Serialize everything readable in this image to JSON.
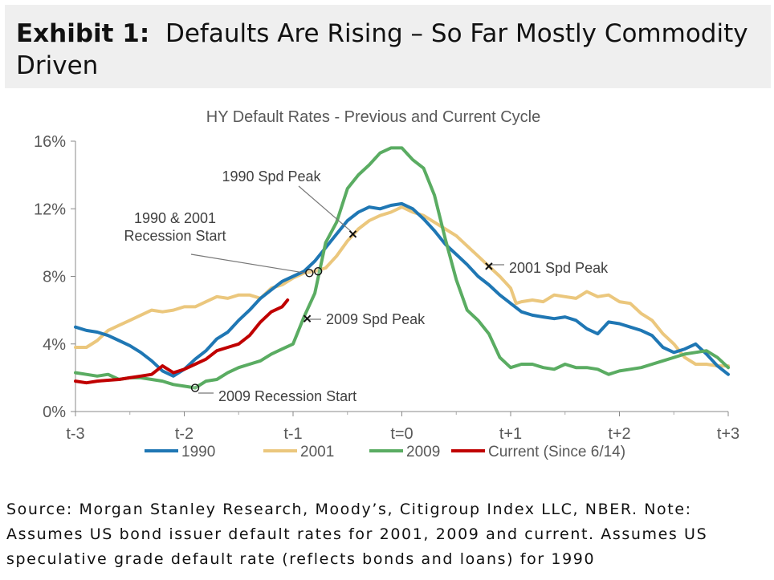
{
  "header": {
    "label": "Exhibit 1:",
    "title": "Defaults Are Rising – So Far Mostly Commodity Driven"
  },
  "source": "Source: Morgan Stanley Research, Moody’s, Citigroup Index LLC, NBER. Note: Assumes US bond issuer default rates for 2001, 2009 and current. Assumes US speculative grade default rate (reflects bonds and loans) for 1990",
  "chart_data": {
    "type": "line",
    "title": "HY Default Rates - Previous and Current Cycle",
    "xlim": [
      -3,
      3
    ],
    "ylim": [
      0,
      16
    ],
    "x_ticks": [
      {
        "value": -3,
        "label": "t-3"
      },
      {
        "value": -2,
        "label": "t-2"
      },
      {
        "value": -1,
        "label": "t-1"
      },
      {
        "value": 0,
        "label": "t=0"
      },
      {
        "value": 1,
        "label": "t+1"
      },
      {
        "value": 2,
        "label": "t+2"
      },
      {
        "value": 3,
        "label": "t+3"
      }
    ],
    "y_ticks": [
      {
        "value": 0,
        "label": "0%"
      },
      {
        "value": 4,
        "label": "4%"
      },
      {
        "value": 8,
        "label": "8%"
      },
      {
        "value": 12,
        "label": "12%"
      },
      {
        "value": 16,
        "label": "16%"
      }
    ],
    "legend_position": "bottom",
    "series": [
      {
        "name": "1990",
        "color": "#1f77b4",
        "points": [
          [
            -3,
            5.0
          ],
          [
            -2.9,
            4.8
          ],
          [
            -2.8,
            4.7
          ],
          [
            -2.7,
            4.5
          ],
          [
            -2.6,
            4.2
          ],
          [
            -2.5,
            3.9
          ],
          [
            -2.4,
            3.5
          ],
          [
            -2.3,
            3.0
          ],
          [
            -2.2,
            2.4
          ],
          [
            -2.1,
            2.1
          ],
          [
            -2.0,
            2.5
          ],
          [
            -1.9,
            3.1
          ],
          [
            -1.8,
            3.6
          ],
          [
            -1.7,
            4.3
          ],
          [
            -1.6,
            4.7
          ],
          [
            -1.5,
            5.4
          ],
          [
            -1.4,
            6.0
          ],
          [
            -1.3,
            6.7
          ],
          [
            -1.2,
            7.2
          ],
          [
            -1.1,
            7.7
          ],
          [
            -1.0,
            8.0
          ],
          [
            -0.9,
            8.3
          ],
          [
            -0.8,
            8.9
          ],
          [
            -0.7,
            9.7
          ],
          [
            -0.6,
            10.5
          ],
          [
            -0.5,
            11.3
          ],
          [
            -0.4,
            11.8
          ],
          [
            -0.3,
            12.1
          ],
          [
            -0.2,
            12.0
          ],
          [
            -0.1,
            12.2
          ],
          [
            0.0,
            12.3
          ],
          [
            0.1,
            12.0
          ],
          [
            0.2,
            11.4
          ],
          [
            0.3,
            10.7
          ],
          [
            0.4,
            9.9
          ],
          [
            0.5,
            9.3
          ],
          [
            0.6,
            8.7
          ],
          [
            0.7,
            8.0
          ],
          [
            0.8,
            7.5
          ],
          [
            0.9,
            6.9
          ],
          [
            1.0,
            6.4
          ],
          [
            1.1,
            5.9
          ],
          [
            1.2,
            5.7
          ],
          [
            1.3,
            5.6
          ],
          [
            1.4,
            5.5
          ],
          [
            1.5,
            5.6
          ],
          [
            1.6,
            5.4
          ],
          [
            1.7,
            4.9
          ],
          [
            1.8,
            4.6
          ],
          [
            1.9,
            5.3
          ],
          [
            2.0,
            5.2
          ],
          [
            2.1,
            5.0
          ],
          [
            2.2,
            4.8
          ],
          [
            2.3,
            4.5
          ],
          [
            2.4,
            3.8
          ],
          [
            2.5,
            3.5
          ],
          [
            2.6,
            3.7
          ],
          [
            2.7,
            4.0
          ],
          [
            2.8,
            3.4
          ],
          [
            2.9,
            2.7
          ],
          [
            3.0,
            2.2
          ]
        ]
      },
      {
        "name": "2001",
        "color": "#ebc77d",
        "points": [
          [
            -3,
            3.8
          ],
          [
            -2.9,
            3.8
          ],
          [
            -2.8,
            4.2
          ],
          [
            -2.7,
            4.8
          ],
          [
            -2.6,
            5.1
          ],
          [
            -2.5,
            5.4
          ],
          [
            -2.4,
            5.7
          ],
          [
            -2.3,
            6.0
          ],
          [
            -2.2,
            5.9
          ],
          [
            -2.1,
            6.0
          ],
          [
            -2.0,
            6.2
          ],
          [
            -1.9,
            6.2
          ],
          [
            -1.8,
            6.5
          ],
          [
            -1.7,
            6.8
          ],
          [
            -1.6,
            6.7
          ],
          [
            -1.5,
            6.9
          ],
          [
            -1.4,
            6.9
          ],
          [
            -1.3,
            6.7
          ],
          [
            -1.2,
            7.3
          ],
          [
            -1.1,
            7.5
          ],
          [
            -1.0,
            7.9
          ],
          [
            -0.9,
            8.2
          ],
          [
            -0.8,
            8.3
          ],
          [
            -0.7,
            8.5
          ],
          [
            -0.6,
            9.2
          ],
          [
            -0.5,
            10.1
          ],
          [
            -0.4,
            10.8
          ],
          [
            -0.3,
            11.3
          ],
          [
            -0.2,
            11.6
          ],
          [
            -0.1,
            11.8
          ],
          [
            0.0,
            12.1
          ],
          [
            0.1,
            11.8
          ],
          [
            0.2,
            11.6
          ],
          [
            0.3,
            11.2
          ],
          [
            0.4,
            10.8
          ],
          [
            0.5,
            10.4
          ],
          [
            0.6,
            9.8
          ],
          [
            0.7,
            9.2
          ],
          [
            0.8,
            8.6
          ],
          [
            0.9,
            8.0
          ],
          [
            1.0,
            7.3
          ],
          [
            1.05,
            6.4
          ],
          [
            1.1,
            6.5
          ],
          [
            1.2,
            6.6
          ],
          [
            1.3,
            6.5
          ],
          [
            1.4,
            6.9
          ],
          [
            1.5,
            6.8
          ],
          [
            1.6,
            6.7
          ],
          [
            1.7,
            7.1
          ],
          [
            1.8,
            6.8
          ],
          [
            1.9,
            6.9
          ],
          [
            2.0,
            6.5
          ],
          [
            2.1,
            6.4
          ],
          [
            2.2,
            5.8
          ],
          [
            2.3,
            5.4
          ],
          [
            2.4,
            4.6
          ],
          [
            2.5,
            4.0
          ],
          [
            2.6,
            3.2
          ],
          [
            2.7,
            2.8
          ],
          [
            2.8,
            2.8
          ],
          [
            2.9,
            2.7
          ],
          [
            3.0,
            2.7
          ]
        ]
      },
      {
        "name": "2009",
        "color": "#5aac62",
        "points": [
          [
            -3,
            2.3
          ],
          [
            -2.9,
            2.2
          ],
          [
            -2.8,
            2.1
          ],
          [
            -2.7,
            2.2
          ],
          [
            -2.6,
            1.9
          ],
          [
            -2.5,
            2.0
          ],
          [
            -2.4,
            2.0
          ],
          [
            -2.3,
            1.9
          ],
          [
            -2.2,
            1.8
          ],
          [
            -2.1,
            1.6
          ],
          [
            -2.0,
            1.5
          ],
          [
            -1.9,
            1.4
          ],
          [
            -1.8,
            1.8
          ],
          [
            -1.7,
            1.9
          ],
          [
            -1.6,
            2.3
          ],
          [
            -1.5,
            2.6
          ],
          [
            -1.4,
            2.8
          ],
          [
            -1.3,
            3.0
          ],
          [
            -1.2,
            3.4
          ],
          [
            -1.1,
            3.7
          ],
          [
            -1.0,
            4.0
          ],
          [
            -0.9,
            5.6
          ],
          [
            -0.8,
            7.0
          ],
          [
            -0.7,
            10.0
          ],
          [
            -0.6,
            11.2
          ],
          [
            -0.5,
            13.2
          ],
          [
            -0.4,
            14.0
          ],
          [
            -0.3,
            14.6
          ],
          [
            -0.2,
            15.3
          ],
          [
            -0.1,
            15.6
          ],
          [
            0.0,
            15.6
          ],
          [
            0.1,
            14.9
          ],
          [
            0.2,
            14.4
          ],
          [
            0.3,
            12.8
          ],
          [
            0.4,
            10.2
          ],
          [
            0.5,
            7.8
          ],
          [
            0.6,
            6.0
          ],
          [
            0.7,
            5.4
          ],
          [
            0.8,
            4.6
          ],
          [
            0.9,
            3.2
          ],
          [
            1.0,
            2.6
          ],
          [
            1.1,
            2.8
          ],
          [
            1.2,
            2.8
          ],
          [
            1.3,
            2.6
          ],
          [
            1.4,
            2.5
          ],
          [
            1.5,
            2.8
          ],
          [
            1.6,
            2.6
          ],
          [
            1.7,
            2.6
          ],
          [
            1.8,
            2.5
          ],
          [
            1.9,
            2.2
          ],
          [
            2.0,
            2.4
          ],
          [
            2.1,
            2.5
          ],
          [
            2.2,
            2.6
          ],
          [
            2.3,
            2.8
          ],
          [
            2.4,
            3.0
          ],
          [
            2.5,
            3.2
          ],
          [
            2.6,
            3.4
          ],
          [
            2.7,
            3.5
          ],
          [
            2.8,
            3.6
          ],
          [
            2.9,
            3.2
          ],
          [
            3.0,
            2.6
          ]
        ]
      },
      {
        "name": "Current (Since 6/14)",
        "color": "#c00000",
        "points": [
          [
            -3,
            1.8
          ],
          [
            -2.9,
            1.7
          ],
          [
            -2.8,
            1.8
          ],
          [
            -2.7,
            1.85
          ],
          [
            -2.6,
            1.9
          ],
          [
            -2.5,
            2.0
          ],
          [
            -2.4,
            2.1
          ],
          [
            -2.3,
            2.2
          ],
          [
            -2.2,
            2.7
          ],
          [
            -2.1,
            2.3
          ],
          [
            -2.0,
            2.5
          ],
          [
            -1.9,
            2.8
          ],
          [
            -1.8,
            3.1
          ],
          [
            -1.7,
            3.6
          ],
          [
            -1.6,
            3.8
          ],
          [
            -1.5,
            4.0
          ],
          [
            -1.4,
            4.5
          ],
          [
            -1.3,
            5.3
          ],
          [
            -1.2,
            5.9
          ],
          [
            -1.1,
            6.2
          ],
          [
            -1.05,
            6.6
          ]
        ]
      }
    ],
    "annotations": [
      {
        "text": "1990 Spd Peak",
        "series": "1990",
        "x": -0.45,
        "y": 10.5,
        "marker": "x"
      },
      {
        "text": "1990 & 2001 Recession Start",
        "series": "1990",
        "x": -0.85,
        "y": 8.2,
        "marker": "o"
      },
      {
        "text": "1990 & 2001 Recession Start",
        "series": "2001",
        "x": -0.77,
        "y": 8.3,
        "marker": "o"
      },
      {
        "text": "2001 Spd Peak",
        "series": "2001",
        "x": 0.8,
        "y": 8.6,
        "marker": "x"
      },
      {
        "text": "2009 Spd Peak",
        "series": "2009",
        "x": -0.87,
        "y": 5.5,
        "marker": "x"
      },
      {
        "text": "2009 Recession Start",
        "series": "2009",
        "x": -1.9,
        "y": 1.4,
        "marker": "o"
      }
    ],
    "annotation_labels": [
      {
        "lines": [
          "1990 Spd Peak"
        ]
      },
      {
        "lines": [
          "1990 & 2001",
          "Recession Start"
        ]
      },
      {
        "lines": [
          "2001 Spd Peak"
        ]
      },
      {
        "lines": [
          "2009 Spd Peak"
        ]
      },
      {
        "lines": [
          "2009 Recession Start"
        ]
      }
    ]
  }
}
